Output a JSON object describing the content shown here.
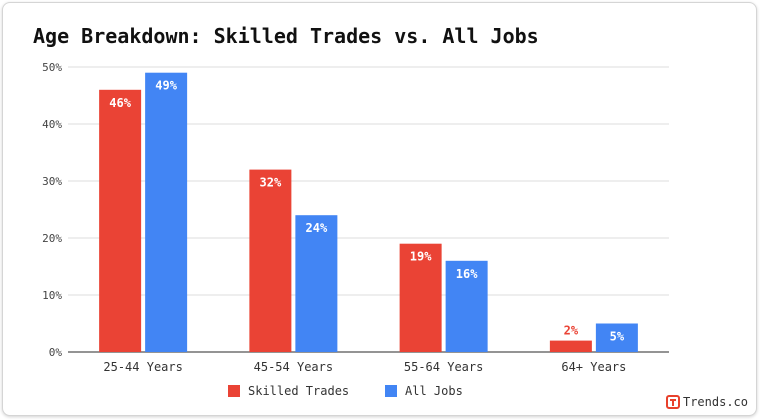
{
  "brand": {
    "text": "Trends.co",
    "logo_icon": "trends-t-logo-icon",
    "color": "#e8412c"
  },
  "chart_data": {
    "type": "bar",
    "title": "Age Breakdown: Skilled Trades vs. All Jobs",
    "xlabel": "",
    "ylabel": "",
    "categories": [
      "25-44 Years",
      "45-54 Years",
      "55-64 Years",
      "64+ Years"
    ],
    "series": [
      {
        "name": "Skilled Trades",
        "color": "#ea4335",
        "values": [
          46,
          32,
          19,
          2
        ],
        "labels": [
          "46%",
          "32%",
          "19%",
          "2%"
        ]
      },
      {
        "name": "All Jobs",
        "color": "#4285f4",
        "values": [
          49,
          24,
          16,
          5
        ],
        "labels": [
          "49%",
          "24%",
          "16%",
          "5%"
        ]
      }
    ],
    "ylim": [
      0,
      50
    ],
    "yticks": [
      0,
      10,
      20,
      30,
      40,
      50
    ],
    "ytick_labels": [
      "0%",
      "10%",
      "20%",
      "30%",
      "40%",
      "50%"
    ],
    "grid": true,
    "legend_position": "bottom"
  }
}
